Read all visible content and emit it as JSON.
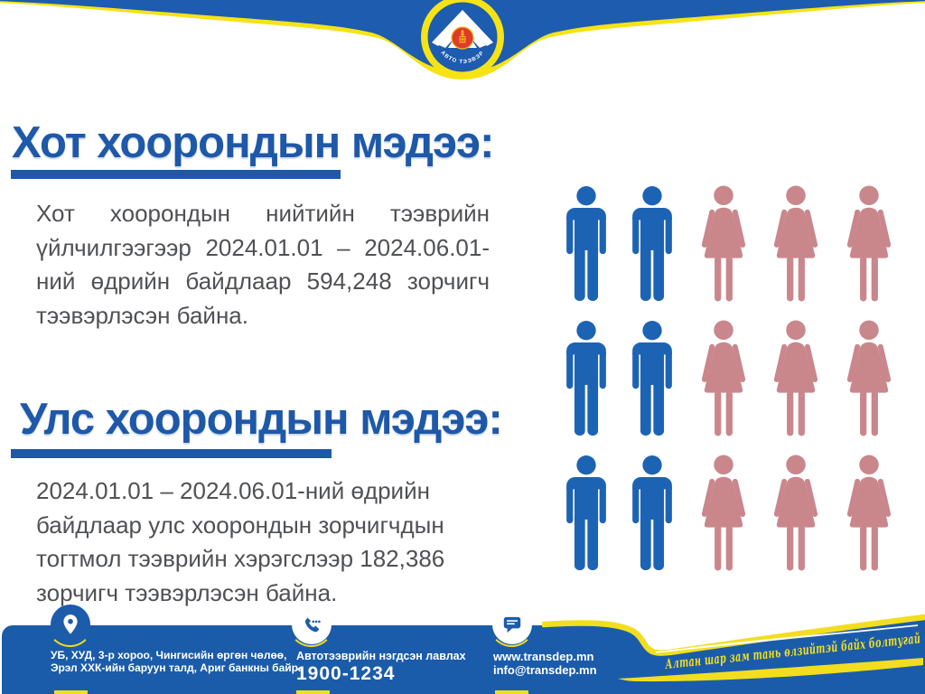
{
  "colors": {
    "band_blue": "#1d5cae",
    "band_yellow": "#f5e316",
    "title_blue": "#1e58a8",
    "body_grey": "#4f5154",
    "male_blue": "#1d63b4",
    "female_rose": "#c9878c",
    "footer_blue": "#1b5caa",
    "badge_blue": "#1d5cab",
    "ribbon_yellow": "#f2de1e",
    "emblem_red": "#e03a2f",
    "emblem_gold": "#f7b916"
  },
  "logo": {
    "curved_text": "АВТО ТЭЭВЭР"
  },
  "sections": [
    {
      "title": "Хот хоорондын мэдээ:",
      "justify": true,
      "lines": [
        "Хот хоорондын нийтийн тээврийн",
        "үйлчилгээгээр 2024.01.01 – 2024.06.01-",
        "ний өдрийн байдлаар 594,248 зорчигч",
        "тээвэрлэсэн байна."
      ]
    },
    {
      "title": "Улс хоорондын мэдээ:",
      "justify": false,
      "lines": [
        "2024.01.01 – 2024.06.01-ний өдрийн",
        "байдлаар улс хоорондын зорчигчдын",
        "тогтмол тээврийн хэрэгслээр 182,386",
        "зорчигч тээвэрлэсэн байна."
      ]
    }
  ],
  "stats": {
    "period": "2024.01.01 – 2024.06.01",
    "city_passengers": "594,248",
    "intercountry_passengers": "182,386"
  },
  "pictograph": {
    "rows": 3,
    "pattern": [
      "male",
      "male",
      "female",
      "female",
      "female"
    ]
  },
  "footer": {
    "address_line1": "УБ, ХУД, 3-р хороо, Чингисийн өргөн чөлөө,",
    "address_line2": "Эрэл ХХК-ийн баруун талд, Ариг банкны байр.",
    "hotline_label": "Автотээврийн нэгдсэн лавлах",
    "hotline_number": "1900-1234",
    "website": "www.transdep.mn",
    "email": "info@transdep.mn",
    "ribbon_text": "Алтан шар зам тань өлзийтэй байх болтугай"
  }
}
